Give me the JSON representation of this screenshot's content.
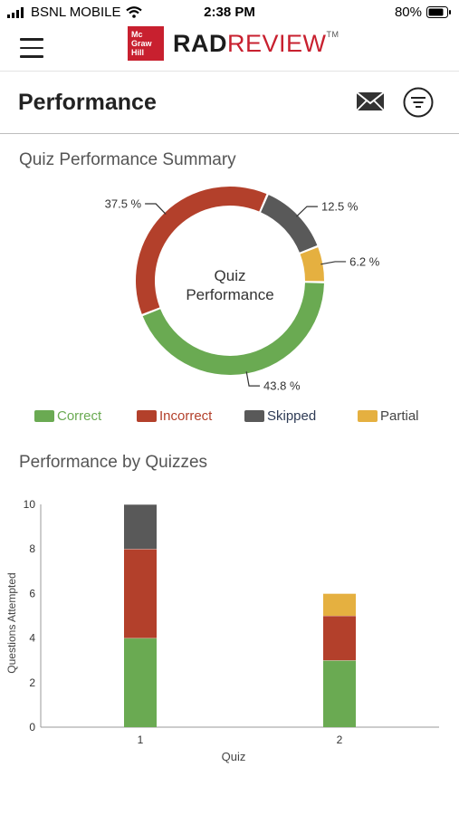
{
  "status_bar": {
    "carrier": "BSNL MOBILE",
    "time": "2:38 PM",
    "battery": "80%"
  },
  "header": {
    "logo_text": [
      "Mc",
      "Graw",
      "Hill"
    ],
    "brand_rad": "RAD",
    "brand_review": "REVIEW",
    "brand_tm": "TM"
  },
  "page": {
    "title": "Performance"
  },
  "summary": {
    "title": "Quiz Performance Summary",
    "center_line1": "Quiz",
    "center_line2": "Performance"
  },
  "quizzes": {
    "title": "Performance by Quizzes"
  },
  "colors": {
    "correct": "#6aaa52",
    "incorrect": "#b3402b",
    "skipped": "#595959",
    "partial": "#e5b040"
  },
  "legend": [
    {
      "label": "Correct",
      "color": "#6aaa52",
      "text_color": "#6aaa52"
    },
    {
      "label": "Incorrect",
      "color": "#b3402b",
      "text_color": "#b3402b"
    },
    {
      "label": "Skipped",
      "color": "#595959",
      "text_color": "#2e3b55"
    },
    {
      "label": "Partial",
      "color": "#e5b040",
      "text_color": "#444444"
    }
  ],
  "chart_data": [
    {
      "type": "pie",
      "title": "Quiz Performance Summary",
      "center_text": "Quiz Performance",
      "categories": [
        "Correct",
        "Incorrect",
        "Skipped",
        "Partial"
      ],
      "values": [
        43.8,
        37.5,
        12.5,
        6.2
      ],
      "labels": [
        "43.8 %",
        "37.5 %",
        "12.5 %",
        "6.2 %"
      ]
    },
    {
      "type": "bar",
      "stacked": true,
      "title": "Performance by Quizzes",
      "categories": [
        "1",
        "2"
      ],
      "xlabel": "Quiz",
      "ylabel": "Questions Attempted",
      "ylim": [
        0,
        10
      ],
      "yticks": [
        0,
        2,
        4,
        6,
        8,
        10
      ],
      "series": [
        {
          "name": "Correct",
          "values": [
            4,
            3
          ]
        },
        {
          "name": "Incorrect",
          "values": [
            4,
            2
          ]
        },
        {
          "name": "Skipped",
          "values": [
            2,
            0
          ]
        },
        {
          "name": "Partial",
          "values": [
            0,
            1
          ]
        }
      ]
    }
  ]
}
